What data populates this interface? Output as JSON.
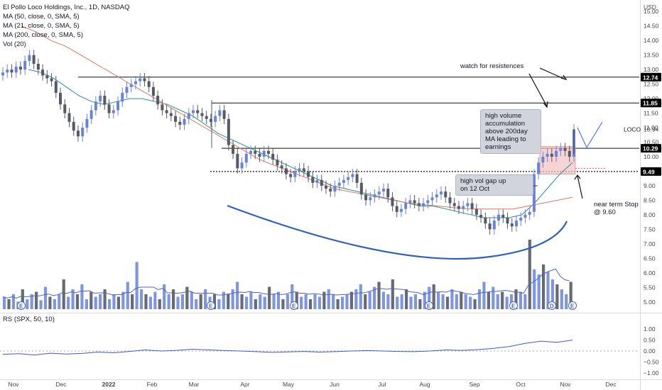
{
  "legend": {
    "title": "El Pollo Loco Holdings, Inc., 1D, NASDAQ",
    "ma50": "MA (50, close, 0, SMA, 5)",
    "ma21": "MA (21, close, 0, SMA, 5)",
    "ma200": "MA (200, close, 0, SMA, 5)",
    "vol": "Vol (20)"
  },
  "rs_legend": "RS (SPX, 50, 10)",
  "currency": "USD",
  "ticker_label": "LOCO",
  "annotations": {
    "watch": "watch for resistences",
    "high_volume": [
      "high volume",
      "accumulation",
      "above 200day",
      "MA leading to",
      "earnings"
    ],
    "gap_up": [
      "high vol gap up",
      "on 12 Oct"
    ],
    "stop": [
      "near term Stop",
      "@ 9.60"
    ]
  },
  "colors": {
    "up": "#6a83d7",
    "down": "#555a66",
    "ma21": "#26918a",
    "ma200": "#e5765f",
    "curve": "#2f5fc4",
    "vol_up": "#7f95e0",
    "vol_down": "#666a73",
    "rs_line": "#3b5cc4",
    "highlight": "#f4c2c2"
  },
  "chart_data": {
    "type": "candlestick",
    "price_axis": {
      "min": 4.75,
      "max": 15.25,
      "ticks": [
        "15.00",
        "14.50",
        "14.00",
        "13.50",
        "13.00",
        "12.50",
        "12.00",
        "11.50",
        "11.00",
        "10.50",
        "10.00",
        "9.00",
        "8.50",
        "8.00",
        "7.50",
        "7.00",
        "6.50",
        "6.00",
        "5.50",
        "5.00"
      ],
      "tick_values": [
        15.0,
        14.5,
        14.0,
        13.5,
        13.0,
        12.5,
        12.0,
        11.5,
        11.0,
        10.5,
        10.0,
        9.0,
        8.5,
        8.0,
        7.5,
        7.0,
        6.5,
        6.0,
        5.5,
        5.0
      ]
    },
    "x_labels": [
      "Nov",
      "Dec",
      "2022",
      "Feb",
      "Mar",
      "Apr",
      "May",
      "Jun",
      "Jul",
      "Aug",
      "Sep",
      "Oct",
      "Nov",
      "Dec"
    ],
    "horizontal_levels": [
      {
        "value": 12.74,
        "label": "12.74",
        "style": "solid"
      },
      {
        "value": 11.85,
        "label": "11.85",
        "style": "solid"
      },
      {
        "value": 10.29,
        "label": "10.29",
        "style": "solid"
      },
      {
        "value": 9.49,
        "label": "9.49",
        "style": "dotted"
      }
    ],
    "price_badges": [
      {
        "value": 10.94,
        "label": "10.94",
        "boxed": false
      }
    ],
    "closes": [
      12.9,
      13.0,
      12.9,
      13.1,
      13.0,
      13.3,
      13.5,
      13.2,
      13.0,
      12.8,
      12.7,
      12.6,
      12.2,
      11.8,
      11.5,
      11.2,
      10.9,
      10.7,
      11.0,
      11.3,
      11.6,
      11.9,
      12.1,
      11.8,
      11.5,
      11.6,
      11.9,
      12.2,
      12.4,
      12.5,
      12.6,
      12.7,
      12.6,
      12.4,
      12.1,
      11.8,
      11.6,
      11.5,
      11.4,
      11.2,
      11.1,
      11.3,
      11.5,
      11.6,
      11.5,
      11.4,
      11.3,
      11.2,
      11.4,
      11.6,
      11.3,
      10.4,
      10.1,
      9.6,
      9.8,
      10.1,
      10.2,
      10.1,
      10.0,
      10.2,
      10.1,
      9.9,
      9.7,
      9.6,
      9.4,
      9.3,
      9.5,
      9.6,
      9.5,
      9.3,
      9.1,
      9.2,
      9.0,
      8.9,
      8.8,
      9.0,
      9.1,
      9.2,
      9.3,
      9.4,
      9.1,
      8.7,
      8.5,
      8.6,
      8.7,
      8.8,
      8.9,
      8.6,
      8.3,
      8.1,
      8.2,
      8.4,
      8.5,
      8.4,
      8.3,
      8.4,
      8.5,
      8.6,
      8.7,
      8.8,
      8.6,
      8.4,
      8.3,
      8.2,
      8.3,
      8.4,
      8.2,
      8.0,
      7.9,
      7.7,
      7.5,
      7.8,
      8.0,
      7.9,
      7.7,
      7.6,
      7.8,
      7.9,
      8.0,
      8.1,
      9.4,
      9.8,
      10.0,
      10.1,
      10.0,
      10.2,
      10.3,
      10.2,
      10.0,
      10.94
    ],
    "moving_averages": {
      "ma21": [
        13.0,
        12.9,
        12.7,
        12.4,
        12.1,
        11.9,
        11.8,
        11.9,
        12.0,
        12.0,
        11.9,
        11.8,
        11.6,
        11.4,
        11.1,
        10.8,
        10.6,
        10.4,
        10.2,
        10.0,
        9.8,
        9.6,
        9.4,
        9.2,
        9.0,
        8.9,
        8.8,
        8.7,
        8.6,
        8.5,
        8.4,
        8.3,
        8.3,
        8.2,
        8.1,
        8.0,
        7.9,
        7.9,
        7.9,
        8.0,
        8.4,
        8.9,
        9.4,
        9.8
      ],
      "ma200": [
        14.5,
        14.3,
        14.0,
        13.8,
        13.5,
        13.2,
        12.9,
        12.6,
        12.3,
        12.0,
        11.7,
        11.4,
        11.1,
        10.8,
        10.5,
        10.2,
        9.9,
        9.7,
        9.5,
        9.3,
        9.1,
        8.9,
        8.8,
        8.7,
        8.6,
        8.5,
        8.4,
        8.35,
        8.3,
        8.25,
        8.2,
        8.2,
        8.2,
        8.2,
        8.3,
        8.4,
        8.5,
        8.6
      ]
    },
    "rs_axis": {
      "ticks": [
        "1.00",
        "0.50",
        "0.00",
        "−0.50",
        "−1.00"
      ],
      "tick_values": [
        1.0,
        0.5,
        0.0,
        -0.5,
        -1.0
      ],
      "min": -1.2,
      "max": 1.2
    },
    "rs": [
      -0.15,
      -0.12,
      -0.18,
      -0.1,
      -0.14,
      -0.11,
      -0.05,
      -0.08,
      -0.02,
      0.05,
      0.0,
      0.03,
      0.08,
      0.05,
      0.02,
      0.0,
      -0.03,
      -0.06,
      -0.04,
      -0.02,
      -0.05,
      -0.03,
      0.0,
      0.02,
      0.0,
      -0.02,
      -0.03,
      0.0,
      0.05,
      0.03,
      0.06,
      0.12,
      0.2,
      0.35,
      0.45,
      0.4,
      0.5
    ],
    "volume": [
      0.25,
      0.2,
      0.3,
      0.15,
      0.4,
      0.2,
      0.3,
      0.35,
      0.18,
      0.45,
      0.25,
      0.2,
      0.3,
      0.6,
      0.25,
      0.4,
      0.3,
      0.5,
      0.2,
      0.35,
      0.25,
      0.3,
      0.4,
      0.2,
      0.3,
      0.25,
      0.35,
      0.55,
      0.3,
      0.95,
      0.4,
      0.3,
      0.25,
      0.35,
      0.2,
      0.5,
      0.3,
      0.4,
      0.25,
      0.3,
      0.45,
      0.35,
      0.2,
      0.3,
      0.4,
      0.25,
      0.3,
      0.2,
      0.35,
      0.3,
      0.4,
      0.55,
      0.3,
      0.25,
      0.35,
      0.2,
      0.3,
      0.25,
      0.45,
      0.3,
      0.35,
      0.2,
      0.3,
      0.5,
      0.35,
      0.25,
      0.3,
      0.2,
      0.3,
      0.25,
      0.35,
      0.4,
      0.3,
      0.2,
      0.25,
      0.3,
      0.35,
      0.4,
      0.5,
      0.3,
      0.35,
      0.45,
      0.55,
      0.35,
      0.3,
      0.6,
      0.25,
      0.3,
      0.4,
      0.25,
      0.3,
      0.2,
      0.35,
      0.45,
      0.5,
      0.35,
      0.3,
      0.25,
      0.4,
      0.3,
      0.35,
      0.3,
      0.25,
      0.2,
      0.4,
      0.55,
      0.35,
      0.45,
      0.3,
      0.35,
      0.25,
      0.3,
      0.4,
      0.35,
      0.3,
      1.4,
      0.8,
      0.7,
      0.9,
      0.75,
      0.6,
      0.5,
      0.4,
      0.3,
      0.55
    ]
  }
}
